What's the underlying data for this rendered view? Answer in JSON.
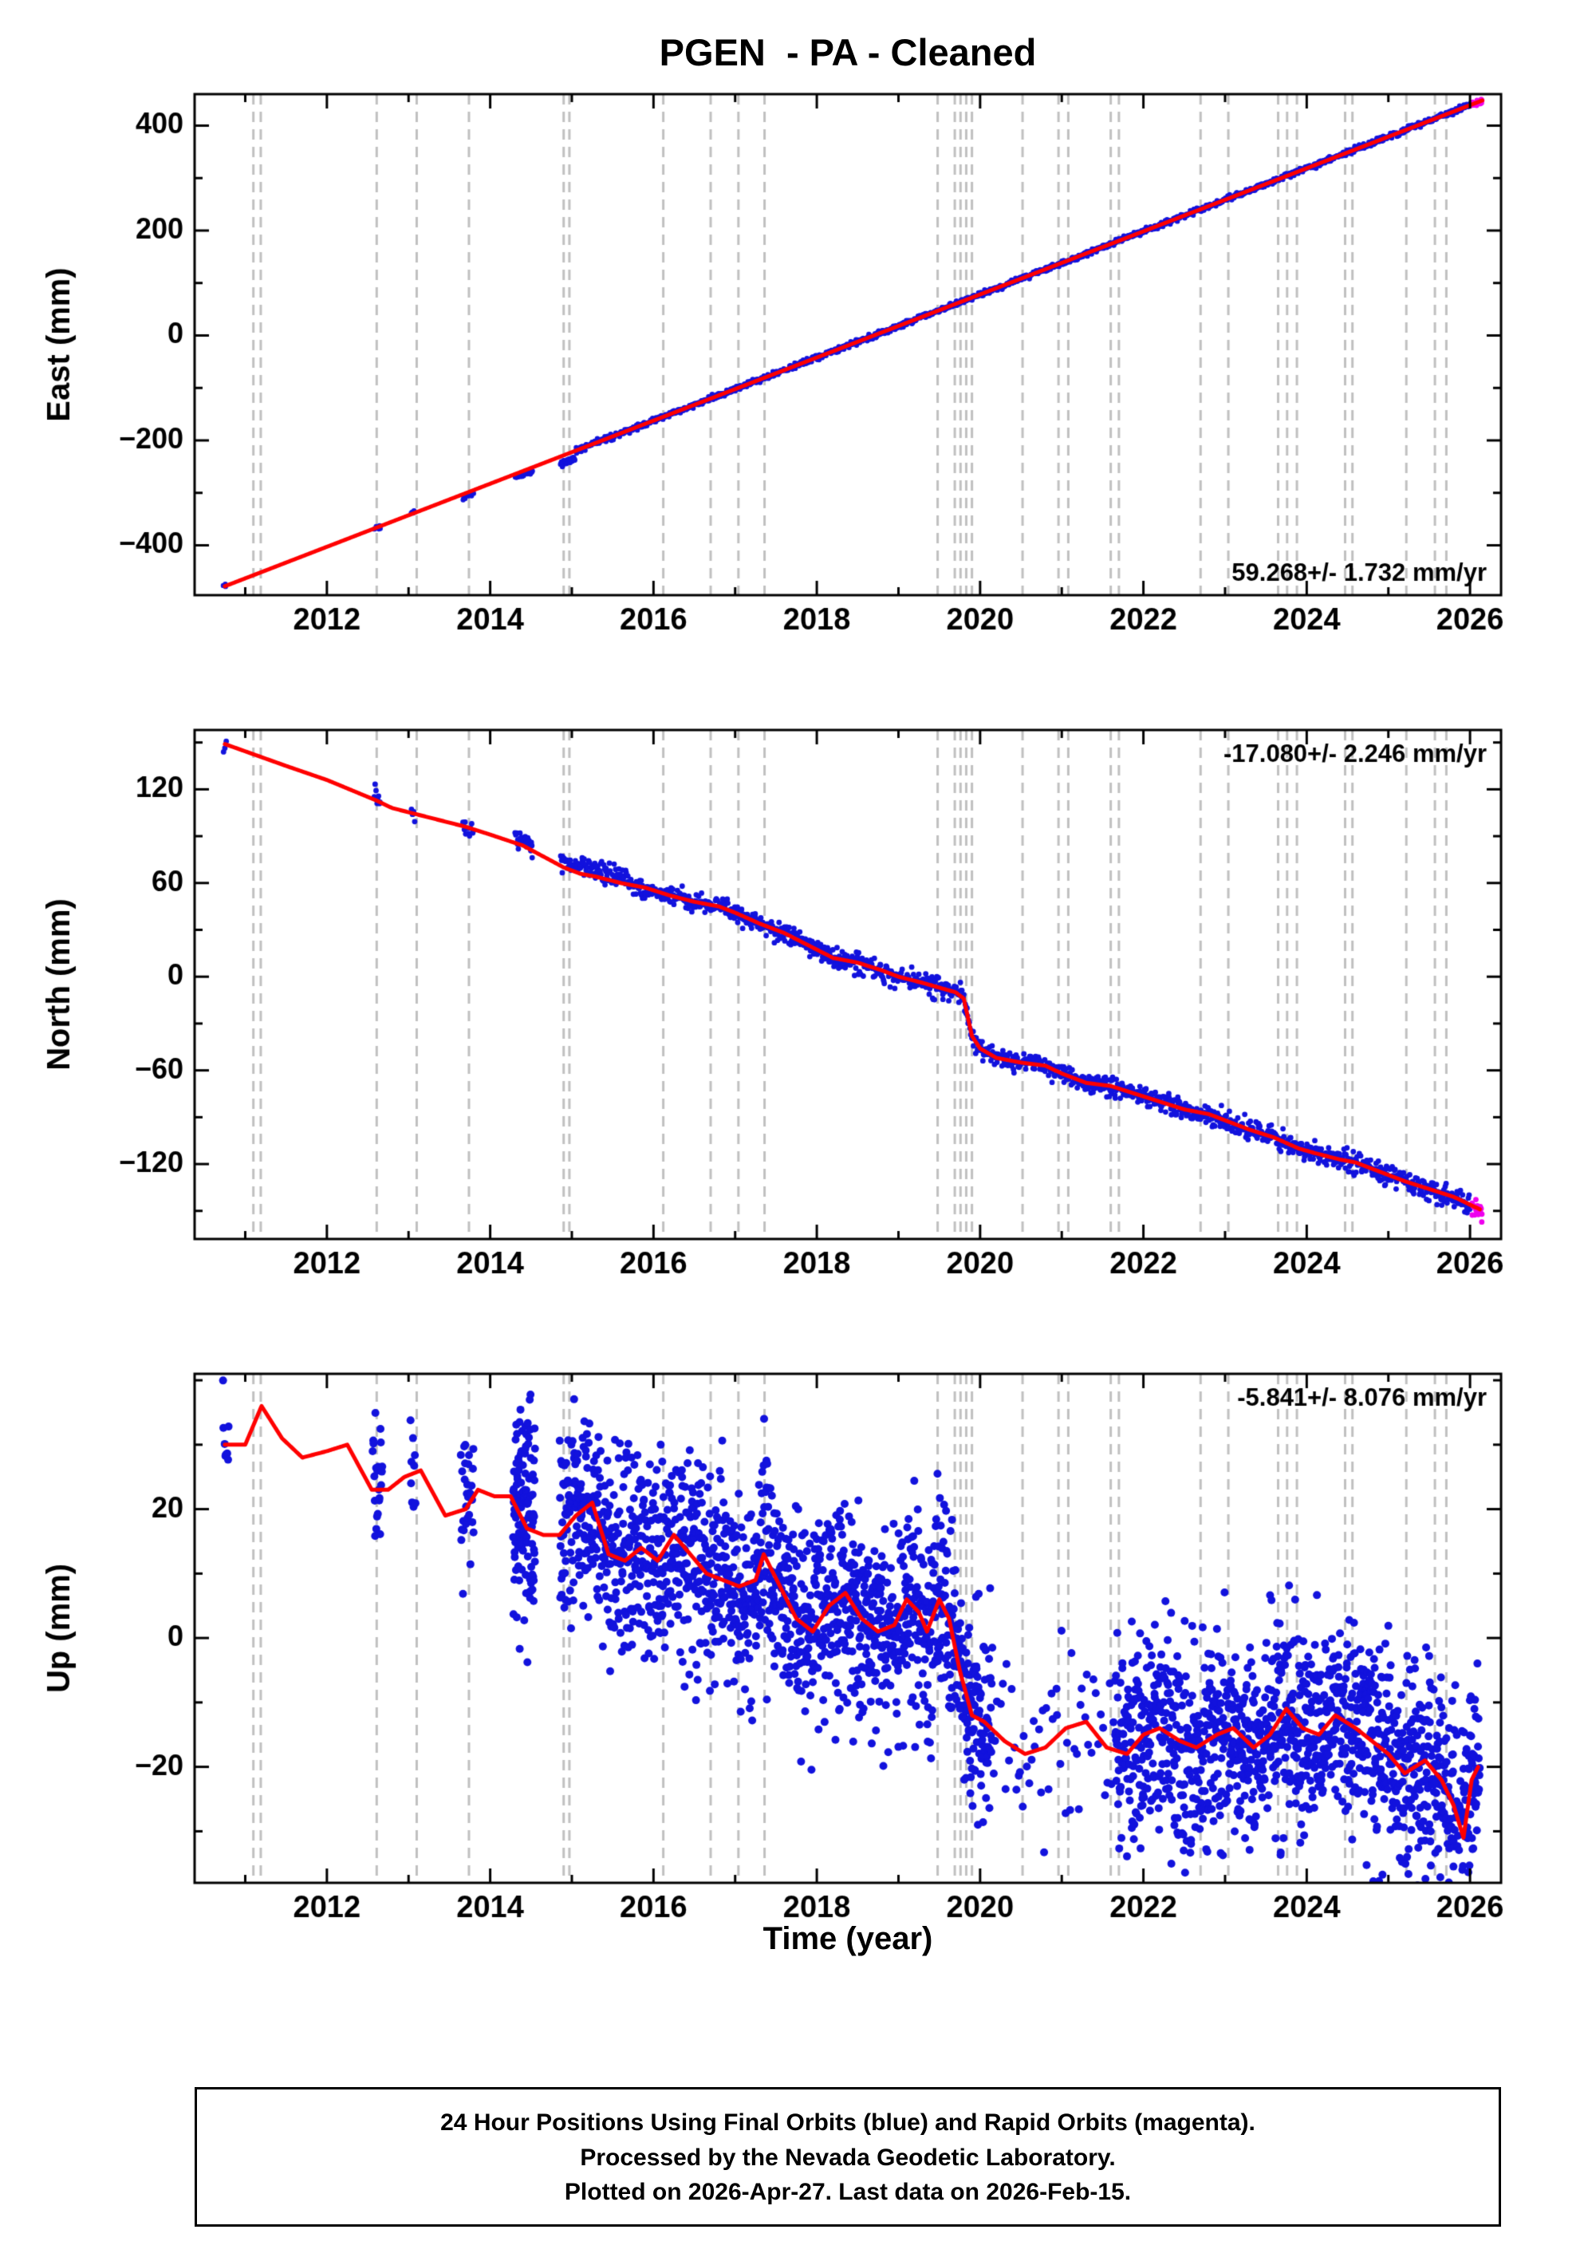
{
  "title": "PGEN  - PA - Cleaned",
  "caption": {
    "lines": [
      "24 Hour Positions Using Final Orbits (blue) and Rapid Orbits (magenta).",
      "Processed by the Nevada Geodetic Laboratory.",
      "Plotted on 2026-Apr-27. Last data on 2026-Feb-15."
    ]
  },
  "colors": {
    "final_orbit_points": "#1212dd",
    "rapid_orbit_points": "#ee00ee",
    "trend_line": "#ff0000",
    "event_line": "#c0c0c0",
    "axes": "#000000"
  },
  "chart_data": {
    "type": "scatter",
    "title": "PGEN  - PA - Cleaned",
    "xlabel": "Time (year)",
    "xlim": [
      2010.38,
      2026.38
    ],
    "xticks": [
      2012,
      2014,
      2016,
      2018,
      2020,
      2022,
      2024,
      2026
    ],
    "x_minor_step": 1,
    "event_years": [
      2011.1,
      2011.19,
      2012.61,
      2013.1,
      2013.74,
      2014.9,
      2014.97,
      2016.12,
      2016.7,
      2017.04,
      2017.36,
      2019.48,
      2019.69,
      2019.76,
      2019.83,
      2019.9,
      2020.52,
      2020.96,
      2021.08,
      2021.6,
      2021.7,
      2022.7,
      2023.04,
      2023.65,
      2023.76,
      2023.88,
      2024.47,
      2024.56,
      2025.22,
      2025.57,
      2025.71
    ],
    "panels": [
      {
        "id": "east",
        "ylabel": "East (mm)",
        "ylim": [
          -495,
          460
        ],
        "yticks": [
          -400,
          -200,
          0,
          200,
          400
        ],
        "rate_label": "59.268+/- 1.732 mm/yr",
        "rate_pos": "bottom-right",
        "point_radius": 3.2,
        "trend": [
          [
            2010.75,
            -478
          ],
          [
            2026.15,
            448
          ]
        ],
        "scatter_segments": [
          {
            "t0": 2010.73,
            "t1": 2010.77,
            "n": 3,
            "noise": 2
          },
          {
            "t0": 2012.58,
            "t1": 2012.66,
            "n": 8,
            "noise": 2.5
          },
          {
            "t0": 2013.03,
            "t1": 2013.08,
            "n": 5,
            "noise": 2.5
          },
          {
            "t0": 2013.66,
            "t1": 2013.8,
            "n": 12,
            "noise": 2.5,
            "dy": -6
          },
          {
            "t0": 2014.3,
            "t1": 2014.52,
            "n": 30,
            "noise": 2.5,
            "dy": -7
          },
          {
            "t0": 2014.86,
            "t1": 2015.04,
            "n": 45,
            "noise": 3,
            "dy": -14
          },
          {
            "t0": 2015.04,
            "t1": 2026.02,
            "n": 1450,
            "noise": 2.6
          },
          {
            "t0": 2026.02,
            "t1": 2026.15,
            "n": 22,
            "noise": 2.6,
            "rapid": true
          }
        ]
      },
      {
        "id": "north",
        "ylabel": "North (mm)",
        "ylim": [
          -168,
          158
        ],
        "yticks": [
          -120,
          -60,
          0,
          60,
          120
        ],
        "rate_label": "-17.080+/- 2.246 mm/yr",
        "rate_pos": "top-right",
        "point_radius": 3.4,
        "trend": [
          [
            2010.75,
            149
          ],
          [
            2011.5,
            135
          ],
          [
            2012.0,
            126
          ],
          [
            2012.6,
            113
          ],
          [
            2012.8,
            108
          ],
          [
            2013.1,
            104
          ],
          [
            2013.4,
            100
          ],
          [
            2013.7,
            96
          ],
          [
            2014.0,
            91
          ],
          [
            2014.4,
            84
          ],
          [
            2014.9,
            70
          ],
          [
            2015.1,
            66
          ],
          [
            2015.3,
            64
          ],
          [
            2015.6,
            60
          ],
          [
            2015.9,
            57
          ],
          [
            2016.2,
            52
          ],
          [
            2016.5,
            48
          ],
          [
            2016.8,
            45
          ],
          [
            2017.0,
            41
          ],
          [
            2017.3,
            34
          ],
          [
            2017.6,
            28
          ],
          [
            2017.9,
            20
          ],
          [
            2018.2,
            12
          ],
          [
            2018.5,
            9
          ],
          [
            2018.8,
            4
          ],
          [
            2019.0,
            0
          ],
          [
            2019.3,
            -4
          ],
          [
            2019.5,
            -7
          ],
          [
            2019.7,
            -10
          ],
          [
            2019.8,
            -14
          ],
          [
            2019.9,
            -38
          ],
          [
            2020.0,
            -46
          ],
          [
            2020.2,
            -52
          ],
          [
            2020.5,
            -55
          ],
          [
            2020.8,
            -57
          ],
          [
            2021.0,
            -62
          ],
          [
            2021.3,
            -68
          ],
          [
            2021.6,
            -70
          ],
          [
            2021.9,
            -75
          ],
          [
            2022.2,
            -80
          ],
          [
            2022.5,
            -85
          ],
          [
            2022.8,
            -88
          ],
          [
            2023.0,
            -92
          ],
          [
            2023.3,
            -98
          ],
          [
            2023.6,
            -103
          ],
          [
            2023.9,
            -110
          ],
          [
            2024.1,
            -113
          ],
          [
            2024.4,
            -117
          ],
          [
            2024.6,
            -119
          ],
          [
            2024.9,
            -125
          ],
          [
            2025.2,
            -131
          ],
          [
            2025.5,
            -136
          ],
          [
            2025.8,
            -141
          ],
          [
            2026.0,
            -146
          ],
          [
            2026.12,
            -149
          ]
        ],
        "scatter_segments": [
          {
            "t0": 2010.73,
            "t1": 2010.77,
            "n": 3,
            "noise": 2.5
          },
          {
            "t0": 2012.58,
            "t1": 2012.66,
            "n": 8,
            "noise": 3,
            "dy": 2
          },
          {
            "t0": 2013.03,
            "t1": 2013.08,
            "n": 5,
            "noise": 3
          },
          {
            "t0": 2013.66,
            "t1": 2013.8,
            "n": 12,
            "noise": 3
          },
          {
            "t0": 2014.3,
            "t1": 2014.52,
            "n": 30,
            "noise": 3,
            "dy": 3
          },
          {
            "t0": 2014.86,
            "t1": 2015.7,
            "n": 110,
            "noise": 3.2,
            "dy": 4
          },
          {
            "t0": 2015.7,
            "t1": 2026.02,
            "n": 1380,
            "noise": 3.2
          },
          {
            "t0": 2026.02,
            "t1": 2026.15,
            "n": 22,
            "noise": 3,
            "rapid": true
          }
        ]
      },
      {
        "id": "up",
        "ylabel": "Up (mm)",
        "ylim": [
          -38,
          41
        ],
        "yticks": [
          -20,
          0,
          20
        ],
        "rate_label": "-5.841+/- 8.076 mm/yr",
        "rate_pos": "top-right",
        "point_radius": 5,
        "trend": [
          [
            2010.75,
            30
          ],
          [
            2011.0,
            30
          ],
          [
            2011.2,
            36
          ],
          [
            2011.45,
            31
          ],
          [
            2011.7,
            28
          ],
          [
            2012.0,
            29
          ],
          [
            2012.25,
            30
          ],
          [
            2012.55,
            23
          ],
          [
            2012.75,
            23
          ],
          [
            2012.95,
            25
          ],
          [
            2013.15,
            26
          ],
          [
            2013.45,
            19
          ],
          [
            2013.7,
            20
          ],
          [
            2013.85,
            23
          ],
          [
            2014.05,
            22
          ],
          [
            2014.25,
            22
          ],
          [
            2014.45,
            17
          ],
          [
            2014.65,
            16
          ],
          [
            2014.85,
            16
          ],
          [
            2015.05,
            19
          ],
          [
            2015.25,
            21
          ],
          [
            2015.45,
            13
          ],
          [
            2015.65,
            12
          ],
          [
            2015.85,
            14
          ],
          [
            2016.05,
            12
          ],
          [
            2016.25,
            16
          ],
          [
            2016.45,
            13
          ],
          [
            2016.65,
            10
          ],
          [
            2016.85,
            9
          ],
          [
            2017.05,
            8
          ],
          [
            2017.25,
            9
          ],
          [
            2017.35,
            13
          ],
          [
            2017.55,
            8
          ],
          [
            2017.75,
            3
          ],
          [
            2017.95,
            1
          ],
          [
            2018.15,
            5
          ],
          [
            2018.35,
            7
          ],
          [
            2018.55,
            3
          ],
          [
            2018.75,
            1
          ],
          [
            2018.95,
            2
          ],
          [
            2019.1,
            6
          ],
          [
            2019.25,
            4
          ],
          [
            2019.35,
            1
          ],
          [
            2019.5,
            6
          ],
          [
            2019.62,
            3
          ],
          [
            2019.75,
            -5
          ],
          [
            2019.9,
            -12
          ],
          [
            2020.05,
            -13
          ],
          [
            2020.3,
            -16
          ],
          [
            2020.55,
            -18
          ],
          [
            2020.8,
            -17
          ],
          [
            2021.05,
            -14
          ],
          [
            2021.3,
            -13
          ],
          [
            2021.55,
            -17
          ],
          [
            2021.8,
            -18
          ],
          [
            2022.0,
            -15
          ],
          [
            2022.2,
            -14
          ],
          [
            2022.45,
            -16
          ],
          [
            2022.65,
            -17
          ],
          [
            2022.9,
            -15
          ],
          [
            2023.1,
            -14
          ],
          [
            2023.35,
            -17
          ],
          [
            2023.55,
            -15
          ],
          [
            2023.75,
            -11
          ],
          [
            2023.95,
            -14
          ],
          [
            2024.15,
            -15
          ],
          [
            2024.35,
            -12
          ],
          [
            2024.6,
            -14
          ],
          [
            2024.8,
            -16
          ],
          [
            2025.0,
            -18
          ],
          [
            2025.2,
            -21
          ],
          [
            2025.45,
            -19
          ],
          [
            2025.65,
            -22
          ],
          [
            2025.8,
            -26
          ],
          [
            2025.92,
            -31
          ],
          [
            2026.02,
            -22
          ],
          [
            2026.1,
            -20
          ]
        ],
        "scatter_segments": [
          {
            "t0": 2010.72,
            "t1": 2010.8,
            "n": 8,
            "noise": 5
          },
          {
            "t0": 2012.56,
            "t1": 2012.68,
            "n": 22,
            "noise": 6
          },
          {
            "t0": 2013.02,
            "t1": 2013.09,
            "n": 9,
            "noise": 6
          },
          {
            "t0": 2013.64,
            "t1": 2013.8,
            "n": 30,
            "noise": 7
          },
          {
            "t0": 2014.28,
            "t1": 2014.55,
            "n": 130,
            "noise": 9
          },
          {
            "t0": 2014.85,
            "t1": 2020.15,
            "n": 1500,
            "noise": 8
          },
          {
            "t0": 2020.15,
            "t1": 2021.65,
            "n": 55,
            "noise": 6
          },
          {
            "t0": 2021.65,
            "t1": 2026.12,
            "n": 1250,
            "noise": 8
          }
        ]
      }
    ]
  }
}
